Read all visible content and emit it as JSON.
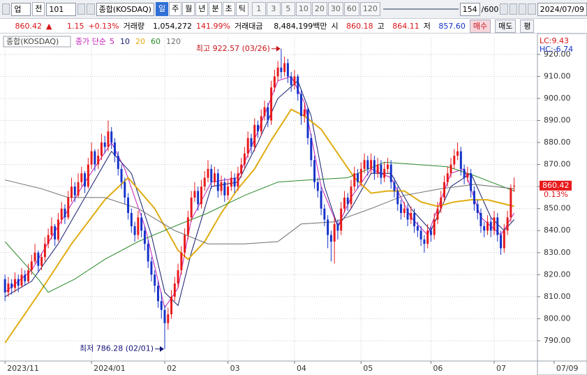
{
  "toolbar": {
    "market": "업",
    "kind": "전",
    "code": "101",
    "name": "종합(KOSDAQ)",
    "periods": [
      "일",
      "주",
      "월",
      "년",
      "분",
      "초",
      "틱"
    ],
    "intervals": [
      "1",
      "3",
      "5",
      "10",
      "20",
      "30",
      "60",
      "120"
    ],
    "count": "154",
    "total": "/600",
    "date": "2024/07/09"
  },
  "quote": {
    "price": "860.42",
    "arrow": "▲",
    "change": "1.15",
    "change_pct": "+0.13%",
    "volume_label": "거래량",
    "volume": "1,054,272",
    "volume_pct": "141.99%",
    "amount_label": "거래대금",
    "amount": "8,484,199백만",
    "open_label": "시",
    "open": "860.18",
    "high_label": "고",
    "high": "864.11",
    "low_label": "저",
    "low": "857.60",
    "buttons": [
      "매수",
      "매도",
      "평"
    ]
  },
  "chart_data": {
    "type": "candlestick",
    "label": "종합(KOSDAQ)",
    "ma_label": "종가 단순",
    "up_color": "#e8191b",
    "down_color": "#1432c8",
    "ohlc": [
      [
        818,
        820,
        808,
        812
      ],
      [
        812,
        819,
        810,
        816
      ],
      [
        816,
        818,
        811,
        814
      ],
      [
        814,
        821,
        812,
        818
      ],
      [
        818,
        820,
        812,
        815
      ],
      [
        815,
        823,
        814,
        820
      ],
      [
        820,
        822,
        815,
        817
      ],
      [
        817,
        825,
        816,
        822
      ],
      [
        822,
        829,
        820,
        826
      ],
      [
        826,
        834,
        825,
        830
      ],
      [
        830,
        831,
        821,
        824
      ],
      [
        824,
        830,
        822,
        828
      ],
      [
        828,
        837,
        826,
        834
      ],
      [
        834,
        841,
        832,
        838
      ],
      [
        838,
        846,
        836,
        842
      ],
      [
        842,
        843,
        833,
        836
      ],
      [
        836,
        848,
        835,
        845
      ],
      [
        845,
        853,
        843,
        850
      ],
      [
        850,
        852,
        843,
        846
      ],
      [
        846,
        858,
        845,
        855
      ],
      [
        855,
        864,
        853,
        860
      ],
      [
        860,
        862,
        853,
        856
      ],
      [
        856,
        866,
        855,
        862
      ],
      [
        862,
        869,
        860,
        866
      ],
      [
        866,
        867,
        857,
        860
      ],
      [
        860,
        873,
        859,
        870
      ],
      [
        870,
        880,
        868,
        876
      ],
      [
        876,
        877,
        867,
        870
      ],
      [
        870,
        877,
        868,
        874
      ],
      [
        874,
        884,
        872,
        880
      ],
      [
        880,
        883,
        875,
        878
      ],
      [
        878,
        890,
        876,
        885
      ],
      [
        885,
        887,
        877,
        880
      ],
      [
        880,
        882,
        871,
        874
      ],
      [
        874,
        876,
        865,
        868
      ],
      [
        868,
        870,
        859,
        862
      ],
      [
        862,
        864,
        852,
        855
      ],
      [
        855,
        857,
        845,
        848
      ],
      [
        848,
        850,
        839,
        842
      ],
      [
        842,
        844,
        835,
        838
      ],
      [
        838,
        849,
        836,
        846
      ],
      [
        846,
        848,
        837,
        840
      ],
      [
        840,
        842,
        831,
        834
      ],
      [
        834,
        836,
        823,
        826
      ],
      [
        826,
        828,
        817,
        820
      ],
      [
        820,
        822,
        812,
        815
      ],
      [
        815,
        817,
        805,
        808
      ],
      [
        808,
        812,
        800,
        804
      ],
      [
        804,
        806,
        786.28,
        798
      ],
      [
        798,
        805,
        795,
        802
      ],
      [
        802,
        813,
        800,
        810
      ],
      [
        810,
        819,
        808,
        816
      ],
      [
        816,
        825,
        814,
        822
      ],
      [
        822,
        833,
        820,
        830
      ],
      [
        830,
        841,
        828,
        838
      ],
      [
        838,
        849,
        836,
        846
      ],
      [
        846,
        858,
        844,
        855
      ],
      [
        855,
        862,
        853,
        858
      ],
      [
        858,
        860,
        849,
        852
      ],
      [
        852,
        863,
        850,
        860
      ],
      [
        860,
        867,
        858,
        864
      ],
      [
        864,
        872,
        862,
        868
      ],
      [
        868,
        870,
        859,
        862
      ],
      [
        862,
        869,
        860,
        866
      ],
      [
        866,
        868,
        855,
        858
      ],
      [
        858,
        865,
        856,
        862
      ],
      [
        862,
        864,
        853,
        856
      ],
      [
        856,
        863,
        854,
        860
      ],
      [
        860,
        867,
        858,
        864
      ],
      [
        864,
        866,
        857,
        860
      ],
      [
        860,
        869,
        858,
        866
      ],
      [
        866,
        873,
        864,
        870
      ],
      [
        870,
        878,
        868,
        875
      ],
      [
        875,
        885,
        873,
        882
      ],
      [
        882,
        884,
        875,
        878
      ],
      [
        878,
        891,
        876,
        888
      ],
      [
        888,
        890,
        882,
        885
      ],
      [
        885,
        895,
        883,
        892
      ],
      [
        892,
        899,
        890,
        896
      ],
      [
        896,
        898,
        887,
        890
      ],
      [
        890,
        908,
        888,
        905
      ],
      [
        905,
        913,
        903,
        910
      ],
      [
        910,
        917,
        908,
        914
      ],
      [
        914,
        922.57,
        909,
        912
      ],
      [
        912,
        919,
        910,
        916
      ],
      [
        916,
        918,
        907,
        910
      ],
      [
        910,
        912,
        903,
        906
      ],
      [
        906,
        913,
        904,
        910
      ],
      [
        910,
        911,
        899,
        902
      ],
      [
        902,
        904,
        888,
        892
      ],
      [
        892,
        898,
        889,
        895
      ],
      [
        895,
        896,
        879,
        882
      ],
      [
        882,
        884,
        869,
        872
      ],
      [
        872,
        874,
        859,
        862
      ],
      [
        862,
        864,
        855,
        858
      ],
      [
        858,
        860,
        847,
        850
      ],
      [
        850,
        852,
        842,
        845
      ],
      [
        845,
        847,
        832,
        838
      ],
      [
        838,
        840,
        826,
        835
      ],
      [
        835,
        846,
        825,
        843
      ],
      [
        843,
        845,
        836,
        840
      ],
      [
        840,
        853,
        838,
        850
      ],
      [
        850,
        858,
        848,
        855
      ],
      [
        855,
        857,
        849,
        852
      ],
      [
        852,
        863,
        850,
        860
      ],
      [
        860,
        869,
        858,
        866
      ],
      [
        866,
        868,
        859,
        862
      ],
      [
        862,
        871,
        860,
        868
      ],
      [
        868,
        875,
        866,
        872
      ],
      [
        872,
        874,
        865,
        868
      ],
      [
        868,
        875,
        866,
        872
      ],
      [
        872,
        874,
        863,
        866
      ],
      [
        866,
        873,
        864,
        870
      ],
      [
        870,
        872,
        861,
        864
      ],
      [
        864,
        871,
        862,
        868
      ],
      [
        868,
        873,
        866,
        870
      ],
      [
        870,
        872,
        859,
        862
      ],
      [
        862,
        864,
        855,
        858
      ],
      [
        858,
        860,
        849,
        852
      ],
      [
        852,
        854,
        845,
        848
      ],
      [
        848,
        853,
        846,
        850
      ],
      [
        850,
        852,
        842,
        845
      ],
      [
        845,
        851,
        843,
        848
      ],
      [
        848,
        850,
        839,
        842
      ],
      [
        842,
        844,
        837,
        840
      ],
      [
        840,
        842,
        833,
        836
      ],
      [
        836,
        838,
        830,
        834
      ],
      [
        834,
        843,
        832,
        840
      ],
      [
        840,
        842,
        835,
        838
      ],
      [
        838,
        848,
        836,
        845
      ],
      [
        845,
        853,
        843,
        850
      ],
      [
        850,
        858,
        848,
        855
      ],
      [
        855,
        865,
        853,
        862
      ],
      [
        862,
        869,
        860,
        866
      ],
      [
        866,
        873,
        864,
        870
      ],
      [
        870,
        877,
        868,
        874
      ],
      [
        874,
        880,
        872,
        876
      ],
      [
        876,
        878,
        865,
        868
      ],
      [
        868,
        870,
        861,
        864
      ],
      [
        864,
        869,
        862,
        866
      ],
      [
        866,
        868,
        855,
        858
      ],
      [
        858,
        860,
        849,
        852
      ],
      [
        852,
        854,
        845,
        848
      ],
      [
        848,
        850,
        839,
        842
      ],
      [
        842,
        844,
        837,
        840
      ],
      [
        840,
        847,
        838,
        844
      ],
      [
        844,
        846,
        837,
        840
      ],
      [
        840,
        849,
        838,
        846
      ],
      [
        846,
        848,
        835,
        838
      ],
      [
        838,
        840,
        829,
        832
      ],
      [
        832,
        843,
        830,
        840
      ],
      [
        840,
        849,
        838,
        846
      ],
      [
        846,
        861,
        844,
        859.27
      ],
      [
        860.18,
        864.11,
        857.6,
        860.42
      ]
    ],
    "series": [
      {
        "name": "5",
        "color": "#c01fb8",
        "width": 1,
        "x": [
          0,
          8,
          16,
          24,
          32,
          36,
          42,
          48,
          52,
          56,
          62,
          70,
          76,
          82,
          86,
          90,
          95,
          100,
          104,
          110,
          116,
          122,
          127,
          134,
          138,
          143,
          149,
          153
        ],
        "values": [
          812,
          822,
          842,
          862,
          880,
          868,
          842,
          805,
          814,
          845,
          862,
          864,
          885,
          908,
          910,
          898,
          860,
          842,
          855,
          868,
          864,
          846,
          838,
          866,
          868,
          846,
          838,
          848
        ]
      },
      {
        "name": "10",
        "color": "#141c6e",
        "width": 1,
        "x": [
          0,
          8,
          16,
          24,
          32,
          38,
          44,
          48,
          52,
          56,
          62,
          70,
          76,
          82,
          88,
          92,
          96,
          100,
          104,
          110,
          116,
          122,
          128,
          134,
          140,
          146,
          150,
          153
        ],
        "values": [
          810,
          817,
          834,
          855,
          876,
          866,
          838,
          812,
          806,
          830,
          860,
          862,
          880,
          900,
          908,
          892,
          860,
          842,
          850,
          866,
          866,
          850,
          840,
          860,
          866,
          846,
          840,
          845
        ]
      },
      {
        "name": "20",
        "color": "#e0ac12",
        "width": 2,
        "x": [
          0,
          10,
          20,
          30,
          37,
          45,
          52,
          55,
          60,
          65,
          70,
          75,
          80,
          86,
          90,
          95,
          100,
          105,
          110,
          115,
          120,
          125,
          130,
          135,
          140,
          145,
          153
        ],
        "values": [
          789,
          811,
          834,
          854,
          864,
          850,
          831,
          827,
          835,
          848,
          859,
          868,
          881,
          895,
          892,
          886,
          875,
          864,
          857,
          858,
          858,
          853,
          851,
          853,
          854,
          854,
          851
        ]
      },
      {
        "name": "60",
        "color": "#2a8a2a",
        "width": 1,
        "x": [
          0,
          10,
          13,
          21,
          30,
          40,
          51,
          61,
          72,
          82,
          91,
          103,
          114,
          124,
          133,
          141,
          153
        ],
        "values": [
          835,
          818,
          812,
          818,
          827,
          835,
          842,
          848,
          856,
          862,
          863,
          864,
          871,
          870,
          869,
          865,
          858
        ]
      },
      {
        "name": "120",
        "color": "#6e6e6e",
        "width": 1,
        "x": [
          0,
          11,
          19,
          30,
          40,
          51,
          61,
          72,
          82,
          89,
          99,
          110,
          120,
          131,
          141,
          153
        ],
        "values": [
          863,
          859,
          855,
          855,
          850,
          840,
          834,
          834,
          835,
          843,
          844,
          850,
          856,
          859,
          861,
          859
        ]
      }
    ],
    "ylim": [
      780.8,
      928.2
    ],
    "yticks": [
      {
        "value": 790,
        "label": "790.00"
      },
      {
        "value": 800,
        "label": "800.00"
      },
      {
        "value": 810,
        "label": "810.00"
      },
      {
        "value": 820,
        "label": "820.00"
      },
      {
        "value": 830,
        "label": "830.00"
      },
      {
        "value": 840,
        "label": "840.00"
      },
      {
        "value": 850,
        "label": "850.00"
      },
      {
        "value": 860,
        "label": "860.00"
      },
      {
        "value": 870,
        "label": "870.00"
      },
      {
        "value": 880,
        "label": "880.00"
      },
      {
        "value": 890,
        "label": "890.00"
      },
      {
        "value": 900,
        "label": "900.00"
      },
      {
        "value": 910,
        "label": "910.00"
      },
      {
        "value": 920,
        "label": "920.00"
      }
    ],
    "xlim": [
      -1.5,
      160
    ],
    "xticks": [
      {
        "value": 0,
        "label": "2023/11"
      },
      {
        "value": 26,
        "label": "2024/01"
      },
      {
        "value": 48,
        "label": "02"
      },
      {
        "value": 67,
        "label": "03"
      },
      {
        "value": 87,
        "label": "04"
      },
      {
        "value": 107,
        "label": "05"
      },
      {
        "value": 128,
        "label": "06"
      },
      {
        "value": 147,
        "label": "07"
      },
      {
        "value": 165,
        "label": "07/09"
      }
    ],
    "grid": true,
    "annotations": [
      {
        "text": "최고 922.57 (03/26)",
        "x": 83,
        "y": 922.57,
        "color": "#c8141a"
      },
      {
        "text": "최저 786.28 (02/01)",
        "x": 48,
        "y": 786.28,
        "color": "#14147a"
      }
    ],
    "lc": "LC:9.43",
    "hc": "HC:-6.74",
    "last_pct": "0.13%"
  }
}
